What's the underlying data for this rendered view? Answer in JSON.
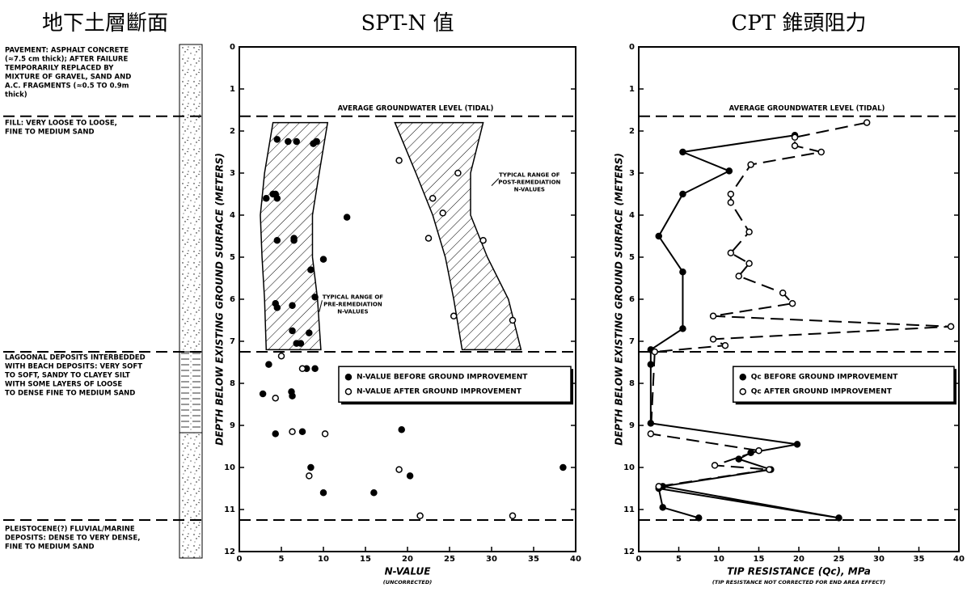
{
  "soil_profile": {
    "title": "地下土層斷面",
    "layers": [
      {
        "lines": [
          "PAVEMENT: ASPHALT CONCRETE",
          "(≈7.5 cm thick); AFTER FAILURE",
          "TEMPORARILY REPLACED BY",
          "MIXTURE OF GRAVEL, SAND AND",
          "A.C. FRAGMENTS (≈0.5 TO 0.9m",
          "thick)"
        ]
      },
      {
        "lines": [
          "FILL: VERY LOOSE TO LOOSE,",
          "FINE TO MEDIUM SAND"
        ]
      },
      {
        "lines": [
          "LAGOONAL DEPOSITS INTERBEDDED",
          "WITH BEACH DEPOSITS: VERY SOFT",
          "TO SOFT, SANDY TO CLAYEY SILT",
          "WITH SOME LAYERS OF LOOSE",
          "TO DENSE FINE TO MEDIUM SAND"
        ]
      },
      {
        "lines": [
          "PLEISTOCENE(?) FLUVIAL/MARINE",
          "DEPOSITS: DENSE TO VERY DENSE,",
          "FINE TO MEDIUM SAND"
        ]
      }
    ]
  },
  "chart_data": [
    {
      "type": "scatter",
      "title": "SPT-N 值",
      "x_label": "N-VALUE",
      "x_sublabel": "(UNCORRECTED)",
      "y_label": "DEPTH BELOW EXISTING GROUND SURFACE (METERS)",
      "xlim": [
        0,
        40
      ],
      "xticks": [
        0,
        5,
        10,
        15,
        20,
        25,
        30,
        35,
        40
      ],
      "ylim": [
        0,
        12
      ],
      "yticks": [
        0,
        1,
        2,
        3,
        4,
        5,
        6,
        7,
        8,
        9,
        10,
        11,
        12
      ],
      "y_reversed": true,
      "hlines": [
        {
          "value": 1.65,
          "label": "AVERAGE GROUNDWATER LEVEL (TIDAL)"
        },
        {
          "value": 7.25
        },
        {
          "value": 11.25
        }
      ],
      "regions": [
        {
          "label_lines": [
            "TYPICAL RANGE OF",
            "PRE-REMEDIATION",
            "N-VALUES"
          ],
          "depth": [
            1.8,
            3,
            4,
            5,
            6,
            7.2
          ],
          "left": [
            4,
            3,
            2.5,
            2.7,
            3,
            3.2
          ],
          "right": [
            10.5,
            9.5,
            8.7,
            8.7,
            9.3,
            9.7
          ]
        },
        {
          "label_lines": [
            "TYPICAL RANGE OF",
            "POST-REMEDIATION",
            "N-VALUES"
          ],
          "depth": [
            1.8,
            3,
            4,
            5,
            6,
            7.2
          ],
          "left": [
            18.5,
            21,
            23,
            24.5,
            25.5,
            26.5
          ],
          "right": [
            29,
            27.5,
            27.5,
            29.5,
            32,
            33.5
          ]
        }
      ],
      "series": [
        {
          "name": "N-VALUE BEFORE GROUND IMPROVEMENT",
          "marker": "filled",
          "color": "#000000",
          "x": [
            4.5,
            5.8,
            6.8,
            8.8,
            9.2,
            3.2,
            4,
            4.5,
            4.3,
            12.8,
            4.5,
            6.5,
            6.5,
            10,
            8.5,
            9,
            4.3,
            4.5,
            6.3,
            8.3,
            6.3,
            6.8,
            7.3,
            3.5,
            8,
            9,
            2.8,
            6.3,
            6.2,
            4.3,
            7.5,
            19.3,
            8.5,
            20.3,
            38.5,
            10,
            16
          ],
          "values": [
            2.2,
            2.25,
            2.25,
            2.3,
            2.25,
            3.6,
            3.5,
            3.6,
            3.5,
            4.05,
            4.6,
            4.6,
            4.55,
            5.05,
            5.3,
            5.95,
            6.1,
            6.2,
            6.15,
            6.8,
            6.75,
            7.05,
            7.05,
            7.55,
            7.65,
            7.65,
            8.25,
            8.3,
            8.2,
            9.2,
            9.15,
            9.1,
            10,
            10.2,
            10,
            10.6,
            10.6
          ]
        },
        {
          "name": "N-VALUE AFTER GROUND IMPROVEMENT",
          "marker": "open",
          "color": "#000000",
          "x": [
            19,
            26,
            23,
            24.2,
            22.5,
            29,
            25.5,
            32.5,
            5,
            7.5,
            4.3,
            6.3,
            10.2,
            19,
            8.3,
            21.5,
            32.5
          ],
          "values": [
            2.7,
            3,
            3.6,
            3.95,
            4.55,
            4.6,
            6.4,
            6.5,
            7.35,
            7.65,
            8.35,
            9.15,
            9.2,
            10.05,
            10.2,
            11.15,
            11.15
          ]
        }
      ]
    },
    {
      "type": "line",
      "title": "CPT 錐頭阻力",
      "x_label": "TIP RESISTANCE (Qc), MPa",
      "x_sublabel": "(TIP RESISTANCE NOT CORRECTED FOR END AREA EFFECT)",
      "y_label": "DEPTH BELOW EXISTING GROUND SURFACE (METERS)",
      "xlim": [
        0,
        40
      ],
      "xticks": [
        0,
        5,
        10,
        15,
        20,
        25,
        30,
        35,
        40
      ],
      "ylim": [
        0,
        12
      ],
      "yticks": [
        0,
        1,
        2,
        3,
        4,
        5,
        6,
        7,
        8,
        9,
        10,
        11,
        12
      ],
      "y_reversed": true,
      "hlines": [
        {
          "value": 1.65,
          "label": "AVERAGE GROUNDWATER LEVEL (TIDAL)"
        },
        {
          "value": 7.25
        },
        {
          "value": 11.25
        }
      ],
      "series": [
        {
          "name": "Qc BEFORE GROUND IMPROVEMENT",
          "marker": "filled",
          "line_style": "solid",
          "color": "#000000",
          "x": [
            19.5,
            5.5,
            11.3,
            5.5,
            2.5,
            5.5,
            5.5,
            1.5,
            1.5,
            1.5,
            19.8,
            14,
            12.5,
            16.5,
            3,
            25,
            2.5,
            3,
            7.5
          ],
          "values": [
            2.1,
            2.5,
            2.95,
            3.5,
            4.5,
            5.35,
            6.7,
            7.2,
            7.55,
            8.95,
            9.45,
            9.65,
            9.8,
            10.05,
            10.45,
            11.2,
            10.5,
            10.95,
            11.2
          ]
        },
        {
          "name": "Qc AFTER GROUND IMPROVEMENT",
          "marker": "open",
          "line_style": "dashed",
          "color": "#000000",
          "x": [
            28.5,
            19.5,
            19.5,
            22.8,
            14,
            11.5,
            11.5,
            13.8,
            11.5,
            13.8,
            12.5,
            18,
            19.2,
            9.3,
            39,
            9.3,
            10.8,
            2,
            1.5,
            15,
            9.5,
            16.3,
            2.5
          ],
          "values": [
            1.8,
            2.15,
            2.35,
            2.5,
            2.8,
            3.5,
            3.7,
            4.4,
            4.9,
            5.15,
            5.45,
            5.85,
            6.1,
            6.4,
            6.65,
            6.95,
            7.1,
            7.25,
            9.2,
            9.6,
            9.95,
            10.05,
            10.45
          ]
        }
      ]
    }
  ]
}
